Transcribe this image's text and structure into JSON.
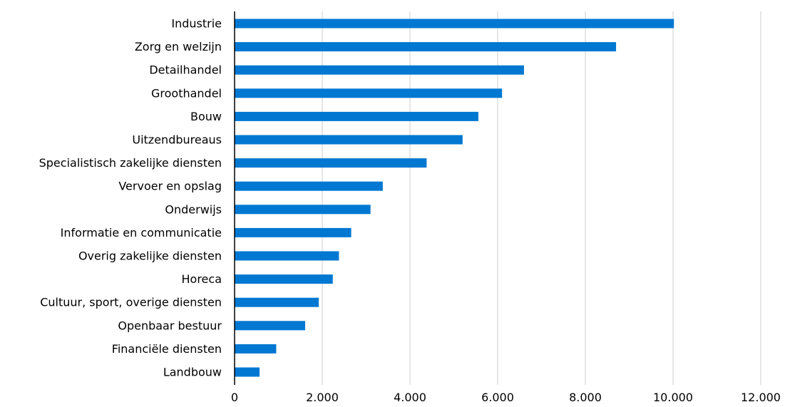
{
  "colors": {
    "bar": "#0078D2",
    "grid": "#cccccc",
    "axis": "#000000",
    "text": "#000000"
  },
  "chart_data": {
    "type": "bar",
    "orientation": "horizontal",
    "title": "",
    "xlabel": "",
    "ylabel": "",
    "xlim": [
      0,
      12000
    ],
    "grid": true,
    "legend": "none",
    "tick_values": [
      0,
      2000,
      4000,
      6000,
      8000,
      10000,
      12000
    ],
    "tick_labels": [
      "0",
      "2.000",
      "4.000",
      "6.000",
      "8.000",
      "10.000",
      "12.000"
    ],
    "categories": [
      "Industrie",
      "Zorg en welzijn",
      "Detailhandel",
      "Groothandel",
      "Bouw",
      "Uitzendbureaus",
      "Specialistisch zakelijke diensten",
      "Vervoer en opslag",
      "Onderwijs",
      "Informatie en communicatie",
      "Overig zakelijke diensten",
      "Horeca",
      "Cultuur, sport, overige diensten",
      "Openbaar bestuur",
      "Financiële diensten",
      "Landbouw"
    ],
    "values": [
      10020,
      8700,
      6600,
      6100,
      5560,
      5200,
      4380,
      3380,
      3100,
      2660,
      2380,
      2240,
      1920,
      1610,
      950,
      570
    ]
  }
}
